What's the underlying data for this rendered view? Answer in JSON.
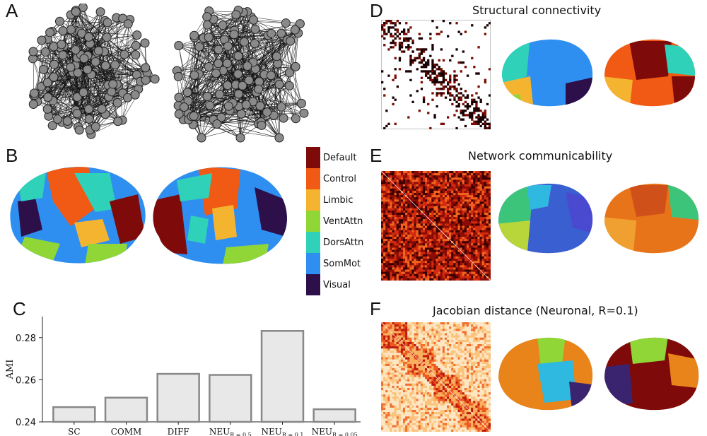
{
  "panels": {
    "a": {
      "letter": "A"
    },
    "b": {
      "letter": "B"
    },
    "c": {
      "letter": "C"
    },
    "d": {
      "letter": "D",
      "title": "Structural connectivity"
    },
    "e": {
      "letter": "E",
      "title": "Network communicability"
    },
    "f": {
      "letter": "F",
      "title": "Jacobian distance (Neuronal, R=0.1)"
    }
  },
  "legend": [
    {
      "label": "Default",
      "color": "#7f0a0a"
    },
    {
      "label": "Control",
      "color": "#f05a14"
    },
    {
      "label": "Limbic",
      "color": "#f5b430"
    },
    {
      "label": "VentAttn",
      "color": "#8fd636"
    },
    {
      "label": "DorsAttn",
      "color": "#2fd2b8"
    },
    {
      "label": "SomMot",
      "color": "#2f8ff0"
    },
    {
      "label": "Visual",
      "color": "#2d0f4a"
    }
  ],
  "chart_data": {
    "type": "bar",
    "categories": [
      "SC",
      "COMM",
      "DIFF",
      "NEU_R=0.5",
      "NEU_R=0.1",
      "NEU_R=0.05"
    ],
    "category_display": [
      {
        "main": "SC",
        "sub": ""
      },
      {
        "main": "COMM",
        "sub": ""
      },
      {
        "main": "DIFF",
        "sub": ""
      },
      {
        "main": "NEU",
        "sub": "R = 0.5"
      },
      {
        "main": "NEU",
        "sub": "R = 0.1"
      },
      {
        "main": "NEU",
        "sub": "R = 0.05"
      }
    ],
    "values": [
      0.247,
      0.2515,
      0.2628,
      0.2623,
      0.2832,
      0.246
    ],
    "ylabel": "AMI",
    "ylim": [
      0.24,
      0.29
    ],
    "yticks": [
      "0.24",
      "0.26",
      "0.28"
    ],
    "bar_fill": "#e8e8e8",
    "bar_stroke": "#888888"
  }
}
